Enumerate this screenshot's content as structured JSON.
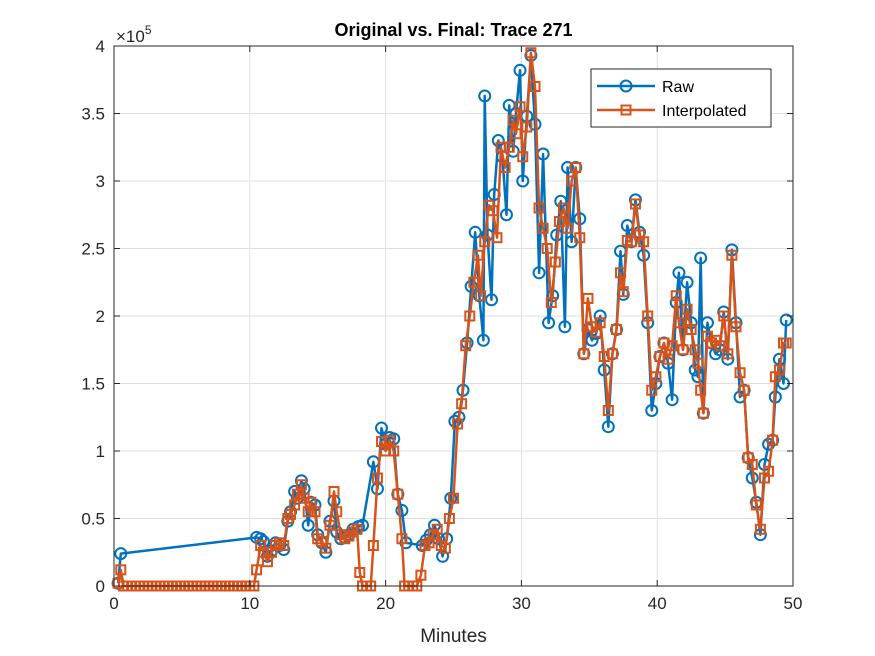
{
  "chart_data": {
    "type": "line",
    "title": "Original vs. Final: Trace 271",
    "xlabel": "Minutes",
    "ylabel": "",
    "xlim": [
      0,
      50
    ],
    "ylim": [
      0,
      400000
    ],
    "x_ticks": [
      0,
      10,
      20,
      30,
      40,
      50
    ],
    "y_ticks": [
      0,
      50000,
      100000,
      150000,
      200000,
      250000,
      300000,
      350000,
      400000
    ],
    "x_tick_labels": [
      "0",
      "10",
      "20",
      "30",
      "40",
      "50"
    ],
    "y_tick_labels": [
      "0",
      "0.5",
      "1",
      "1.5",
      "2",
      "2.5",
      "3",
      "3.5",
      "4"
    ],
    "y_exponent_base": "×10",
    "y_exponent_power": "5",
    "grid": true,
    "legend_position": "top-right",
    "series": [
      {
        "name": "Raw",
        "color": "#0072BD",
        "marker": "circle",
        "points": [
          [
            0.3,
            2000
          ],
          [
            0.5,
            24000
          ],
          [
            10.5,
            36000
          ],
          [
            10.8,
            35000
          ],
          [
            11.0,
            33000
          ],
          [
            11.3,
            22000
          ],
          [
            11.6,
            26000
          ],
          [
            11.9,
            32000
          ],
          [
            12.2,
            30000
          ],
          [
            12.5,
            27000
          ],
          [
            12.8,
            48000
          ],
          [
            13.0,
            55000
          ],
          [
            13.3,
            70000
          ],
          [
            13.5,
            65000
          ],
          [
            13.8,
            78000
          ],
          [
            14.0,
            72000
          ],
          [
            14.3,
            45000
          ],
          [
            14.5,
            62000
          ],
          [
            14.8,
            60000
          ],
          [
            15.0,
            38000
          ],
          [
            15.3,
            32000
          ],
          [
            15.6,
            25000
          ],
          [
            15.9,
            48000
          ],
          [
            16.2,
            63000
          ],
          [
            16.4,
            40000
          ],
          [
            16.7,
            35000
          ],
          [
            17.0,
            36000
          ],
          [
            17.3,
            38000
          ],
          [
            17.6,
            42000
          ],
          [
            18.0,
            44000
          ],
          [
            18.3,
            45000
          ],
          [
            19.1,
            92000
          ],
          [
            19.4,
            72000
          ],
          [
            19.7,
            117000
          ],
          [
            20.0,
            105000
          ],
          [
            20.3,
            110000
          ],
          [
            20.6,
            109000
          ],
          [
            20.9,
            68000
          ],
          [
            21.2,
            56000
          ],
          [
            21.5,
            32000
          ],
          [
            22.7,
            30000
          ],
          [
            23.0,
            34000
          ],
          [
            23.3,
            38000
          ],
          [
            23.6,
            45000
          ],
          [
            23.9,
            35000
          ],
          [
            24.2,
            22000
          ],
          [
            24.5,
            35000
          ],
          [
            24.8,
            65000
          ],
          [
            25.1,
            122000
          ],
          [
            25.4,
            125000
          ],
          [
            25.7,
            145000
          ],
          [
            26.0,
            180000
          ],
          [
            26.3,
            222000
          ],
          [
            26.6,
            262000
          ],
          [
            26.9,
            215000
          ],
          [
            27.2,
            182000
          ],
          [
            27.3,
            363000
          ],
          [
            27.5,
            260000
          ],
          [
            27.8,
            212000
          ],
          [
            28.0,
            290000
          ],
          [
            28.3,
            330000
          ],
          [
            28.6,
            318000
          ],
          [
            28.9,
            275000
          ],
          [
            29.1,
            356000
          ],
          [
            29.4,
            322000
          ],
          [
            29.6,
            350000
          ],
          [
            29.9,
            382000
          ],
          [
            30.1,
            300000
          ],
          [
            30.4,
            348000
          ],
          [
            30.7,
            393000
          ],
          [
            31.0,
            342000
          ],
          [
            31.3,
            232000
          ],
          [
            31.6,
            320000
          ],
          [
            32.0,
            195000
          ],
          [
            32.3,
            215000
          ],
          [
            32.6,
            260000
          ],
          [
            32.9,
            285000
          ],
          [
            33.2,
            192000
          ],
          [
            33.4,
            310000
          ],
          [
            33.7,
            255000
          ],
          [
            34.0,
            310000
          ],
          [
            34.3,
            272000
          ],
          [
            34.6,
            172000
          ],
          [
            34.9,
            190000
          ],
          [
            35.2,
            182000
          ],
          [
            35.5,
            187000
          ],
          [
            35.8,
            200000
          ],
          [
            36.1,
            160000
          ],
          [
            36.4,
            118000
          ],
          [
            36.7,
            172000
          ],
          [
            37.0,
            190000
          ],
          [
            37.3,
            248000
          ],
          [
            37.5,
            216000
          ],
          [
            37.8,
            267000
          ],
          [
            38.1,
            255000
          ],
          [
            38.4,
            286000
          ],
          [
            38.7,
            262000
          ],
          [
            39.0,
            245000
          ],
          [
            39.3,
            195000
          ],
          [
            39.6,
            130000
          ],
          [
            39.9,
            150000
          ],
          [
            40.2,
            170000
          ],
          [
            40.5,
            180000
          ],
          [
            40.8,
            165000
          ],
          [
            41.1,
            138000
          ],
          [
            41.4,
            210000
          ],
          [
            41.6,
            232000
          ],
          [
            41.9,
            175000
          ],
          [
            42.2,
            225000
          ],
          [
            42.5,
            195000
          ],
          [
            42.8,
            160000
          ],
          [
            43.0,
            155000
          ],
          [
            43.2,
            243000
          ],
          [
            43.4,
            128000
          ],
          [
            43.7,
            195000
          ],
          [
            44.0,
            180000
          ],
          [
            44.3,
            172000
          ],
          [
            44.6,
            175000
          ],
          [
            44.9,
            203000
          ],
          [
            45.2,
            168000
          ],
          [
            45.5,
            249000
          ],
          [
            45.8,
            195000
          ],
          [
            46.1,
            140000
          ],
          [
            46.4,
            145000
          ],
          [
            46.7,
            95000
          ],
          [
            47.0,
            80000
          ],
          [
            47.3,
            62000
          ],
          [
            47.6,
            38000
          ],
          [
            47.9,
            90000
          ],
          [
            48.2,
            105000
          ],
          [
            48.5,
            108000
          ],
          [
            48.7,
            140000
          ],
          [
            49.0,
            168000
          ],
          [
            49.3,
            150000
          ],
          [
            49.5,
            197000
          ]
        ]
      },
      {
        "name": "Interpolated",
        "color": "#D95319",
        "marker": "square",
        "points": [
          [
            0.3,
            2000
          ],
          [
            0.5,
            12000
          ],
          [
            0.7,
            0
          ],
          [
            1.0,
            0
          ],
          [
            1.3,
            0
          ],
          [
            1.6,
            0
          ],
          [
            1.9,
            0
          ],
          [
            2.2,
            0
          ],
          [
            2.5,
            0
          ],
          [
            2.8,
            0
          ],
          [
            3.1,
            0
          ],
          [
            3.4,
            0
          ],
          [
            3.7,
            0
          ],
          [
            4.0,
            0
          ],
          [
            4.3,
            0
          ],
          [
            4.6,
            0
          ],
          [
            4.9,
            0
          ],
          [
            5.2,
            0
          ],
          [
            5.5,
            0
          ],
          [
            5.8,
            0
          ],
          [
            6.1,
            0
          ],
          [
            6.4,
            0
          ],
          [
            6.7,
            0
          ],
          [
            7.0,
            0
          ],
          [
            7.3,
            0
          ],
          [
            7.6,
            0
          ],
          [
            7.9,
            0
          ],
          [
            8.2,
            0
          ],
          [
            8.5,
            0
          ],
          [
            8.8,
            0
          ],
          [
            9.1,
            0
          ],
          [
            9.4,
            0
          ],
          [
            9.7,
            0
          ],
          [
            10.0,
            0
          ],
          [
            10.3,
            0
          ],
          [
            10.5,
            12000
          ],
          [
            10.8,
            30000
          ],
          [
            11.0,
            25000
          ],
          [
            11.3,
            18000
          ],
          [
            11.6,
            25000
          ],
          [
            11.9,
            30000
          ],
          [
            12.2,
            32000
          ],
          [
            12.5,
            30000
          ],
          [
            12.8,
            50000
          ],
          [
            13.0,
            53000
          ],
          [
            13.3,
            60000
          ],
          [
            13.5,
            68000
          ],
          [
            13.8,
            75000
          ],
          [
            14.0,
            65000
          ],
          [
            14.3,
            55000
          ],
          [
            14.5,
            62000
          ],
          [
            14.8,
            55000
          ],
          [
            15.0,
            35000
          ],
          [
            15.3,
            33000
          ],
          [
            15.6,
            28000
          ],
          [
            15.9,
            45000
          ],
          [
            16.2,
            70000
          ],
          [
            16.4,
            55000
          ],
          [
            16.7,
            38000
          ],
          [
            17.0,
            35000
          ],
          [
            17.3,
            37000
          ],
          [
            17.6,
            40000
          ],
          [
            17.9,
            42000
          ],
          [
            18.1,
            10000
          ],
          [
            18.3,
            0
          ],
          [
            18.6,
            0
          ],
          [
            18.9,
            0
          ],
          [
            19.1,
            30000
          ],
          [
            19.4,
            80000
          ],
          [
            19.7,
            107000
          ],
          [
            20.0,
            100000
          ],
          [
            20.3,
            108000
          ],
          [
            20.6,
            100000
          ],
          [
            20.9,
            68000
          ],
          [
            21.2,
            35000
          ],
          [
            21.4,
            0
          ],
          [
            21.7,
            0
          ],
          [
            22.0,
            0
          ],
          [
            22.3,
            0
          ],
          [
            22.6,
            8000
          ],
          [
            22.9,
            30000
          ],
          [
            23.2,
            32000
          ],
          [
            23.5,
            38000
          ],
          [
            23.8,
            42000
          ],
          [
            24.1,
            30000
          ],
          [
            24.4,
            28000
          ],
          [
            24.7,
            50000
          ],
          [
            25.0,
            65000
          ],
          [
            25.3,
            120000
          ],
          [
            25.6,
            135000
          ],
          [
            25.9,
            178000
          ],
          [
            26.2,
            200000
          ],
          [
            26.5,
            225000
          ],
          [
            26.8,
            245000
          ],
          [
            27.0,
            215000
          ],
          [
            27.3,
            255000
          ],
          [
            27.6,
            282000
          ],
          [
            27.9,
            278000
          ],
          [
            28.2,
            258000
          ],
          [
            28.5,
            325000
          ],
          [
            28.8,
            310000
          ],
          [
            29.1,
            325000
          ],
          [
            29.4,
            345000
          ],
          [
            29.6,
            335000
          ],
          [
            29.9,
            355000
          ],
          [
            30.1,
            318000
          ],
          [
            30.4,
            340000
          ],
          [
            30.7,
            395000
          ],
          [
            31.0,
            370000
          ],
          [
            31.3,
            280000
          ],
          [
            31.6,
            265000
          ],
          [
            31.9,
            250000
          ],
          [
            32.2,
            210000
          ],
          [
            32.5,
            240000
          ],
          [
            32.8,
            270000
          ],
          [
            33.1,
            280000
          ],
          [
            33.4,
            265000
          ],
          [
            33.7,
            300000
          ],
          [
            34.0,
            310000
          ],
          [
            34.3,
            258000
          ],
          [
            34.6,
            172000
          ],
          [
            34.9,
            213000
          ],
          [
            35.2,
            192000
          ],
          [
            35.5,
            188000
          ],
          [
            35.8,
            195000
          ],
          [
            36.1,
            170000
          ],
          [
            36.4,
            130000
          ],
          [
            36.7,
            172000
          ],
          [
            37.0,
            190000
          ],
          [
            37.3,
            232000
          ],
          [
            37.5,
            218000
          ],
          [
            37.8,
            256000
          ],
          [
            38.1,
            255000
          ],
          [
            38.4,
            283000
          ],
          [
            38.7,
            260000
          ],
          [
            39.0,
            255000
          ],
          [
            39.3,
            200000
          ],
          [
            39.6,
            145000
          ],
          [
            39.9,
            155000
          ],
          [
            40.2,
            170000
          ],
          [
            40.5,
            180000
          ],
          [
            40.8,
            168000
          ],
          [
            41.1,
            178000
          ],
          [
            41.4,
            215000
          ],
          [
            41.6,
            195000
          ],
          [
            41.9,
            175000
          ],
          [
            42.2,
            205000
          ],
          [
            42.5,
            190000
          ],
          [
            42.8,
            175000
          ],
          [
            43.0,
            165000
          ],
          [
            43.2,
            145000
          ],
          [
            43.4,
            128000
          ],
          [
            43.7,
            185000
          ],
          [
            44.0,
            180000
          ],
          [
            44.3,
            182000
          ],
          [
            44.6,
            178000
          ],
          [
            44.9,
            200000
          ],
          [
            45.2,
            172000
          ],
          [
            45.5,
            245000
          ],
          [
            45.8,
            192000
          ],
          [
            46.1,
            158000
          ],
          [
            46.4,
            145000
          ],
          [
            46.7,
            95000
          ],
          [
            47.0,
            90000
          ],
          [
            47.3,
            60000
          ],
          [
            47.6,
            42000
          ],
          [
            47.9,
            80000
          ],
          [
            48.2,
            85000
          ],
          [
            48.5,
            108000
          ],
          [
            48.7,
            155000
          ],
          [
            49.0,
            160000
          ],
          [
            49.3,
            180000
          ],
          [
            49.5,
            180000
          ]
        ]
      }
    ]
  }
}
